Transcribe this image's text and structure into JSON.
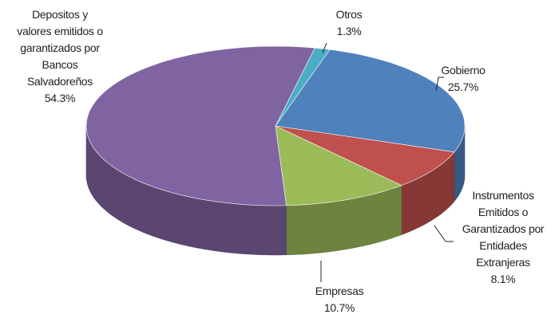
{
  "chart_data": {
    "type": "pie",
    "categories": [
      "Otros",
      "Gobierno",
      "Instrumentos Emitidos o Garantizados por Entidades Extranjeras",
      "Empresas",
      "Depositos y valores emitidos o garantizados por Bancos Salvadoreños"
    ],
    "values": [
      1.3,
      25.7,
      8.1,
      10.7,
      54.3
    ],
    "value_labels": [
      "1.3%",
      "25.7%",
      "8.1%",
      "10.7%",
      "54.3%"
    ],
    "colors": [
      "#4bacc6",
      "#4f81bd",
      "#c0504d",
      "#9bbb59",
      "#8064a2"
    ]
  }
}
